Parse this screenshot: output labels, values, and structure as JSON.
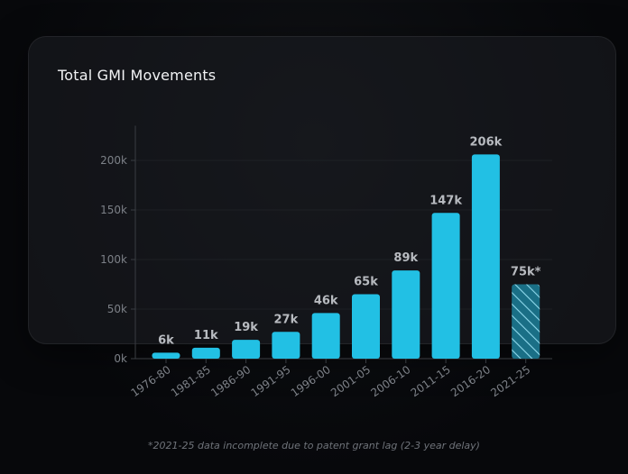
{
  "chart_data": {
    "type": "bar",
    "title": "Total GMI Movements",
    "categories": [
      "1976-80",
      "1981-85",
      "1986-90",
      "1991-95",
      "1996-00",
      "2001-05",
      "2006-10",
      "2011-15",
      "2016-20",
      "2021-25"
    ],
    "values": [
      6,
      11,
      19,
      27,
      46,
      65,
      89,
      147,
      206,
      75
    ],
    "data_labels": [
      "6k",
      "11k",
      "19k",
      "27k",
      "46k",
      "65k",
      "89k",
      "147k",
      "206k",
      "75k*"
    ],
    "incomplete": [
      false,
      false,
      false,
      false,
      false,
      false,
      false,
      false,
      false,
      true
    ],
    "yticks": [
      0,
      50,
      100,
      150,
      200
    ],
    "ytick_labels": [
      "0k",
      "50k",
      "100k",
      "150k",
      "200k"
    ],
    "ylim": [
      0,
      235
    ],
    "xlabel": "",
    "ylabel": "",
    "grid": true,
    "colors": {
      "bar": "#22c0e4",
      "bar_incomplete": "#1a6f86",
      "hatch": "#8fd9ec",
      "label": "#b8bbc0",
      "tick": "#7c8087",
      "axis": "#3a3d42",
      "grid": "#1d2024"
    }
  },
  "footnote": "*2021-25 data incomplete due to patent grant lag (2-3 year delay)"
}
